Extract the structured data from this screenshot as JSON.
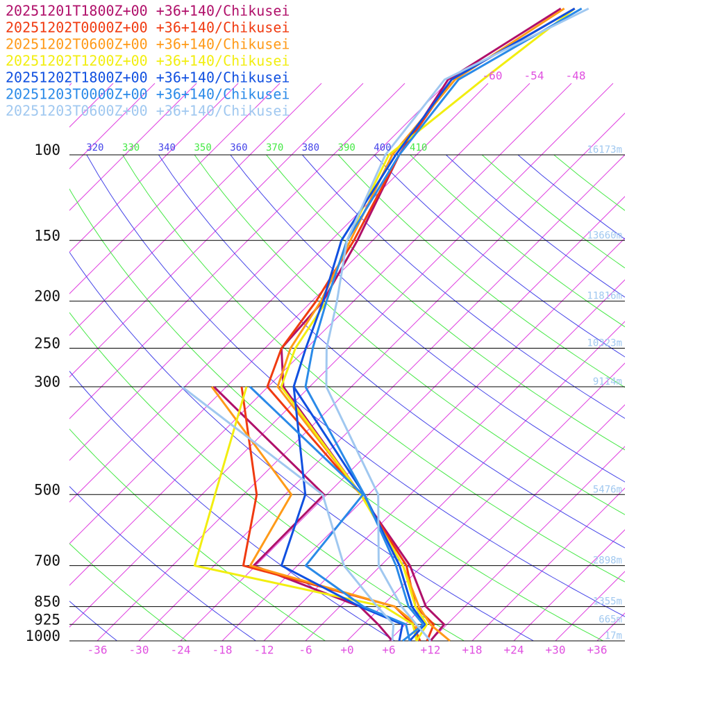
{
  "chart_data": {
    "type": "skewt",
    "log_y": true,
    "ylim": [
      1000,
      100
    ],
    "xlim": [
      -40,
      40
    ],
    "yticks": [
      100,
      150,
      200,
      250,
      300,
      500,
      700,
      850,
      925,
      1000
    ],
    "height_labels": [
      "16173m",
      "13660m",
      "11816m",
      "10323m",
      "9114m",
      "5476m",
      "2898m",
      "1355m",
      "665m",
      "17m"
    ],
    "xticks": [
      -36,
      -30,
      -24,
      -18,
      -12,
      -6,
      {
        "value": 0,
        "label": "+0"
      },
      {
        "value": 6,
        "label": "+6"
      },
      {
        "value": 12,
        "label": "+12"
      },
      {
        "value": 18,
        "label": "+18"
      },
      {
        "value": 24,
        "label": "+24"
      },
      {
        "value": 30,
        "label": "+30"
      },
      {
        "value": 36,
        "label": "+36"
      }
    ],
    "isotherm_labels": [
      -60,
      -54,
      -48
    ],
    "isotherm_color": "#e040e0",
    "adiabat_labels": [
      320,
      330,
      340,
      350,
      360,
      370,
      380,
      390,
      400,
      410
    ],
    "adiabat_colors": [
      "#4444e8",
      "#44e844"
    ],
    "pressure_levels": [
      1000,
      925,
      850,
      700,
      500,
      300,
      250,
      200,
      150,
      100,
      70,
      50
    ],
    "dewpoint_levels": [
      1000,
      925,
      850,
      700,
      500,
      300
    ],
    "series": [
      {
        "name": "20251201T1800Z+00 +36+140/Chikusei",
        "color": "#b0106a",
        "temperature": [
          12,
          11.6,
          6.4,
          -1.8,
          -19.1,
          -45.8,
          -51.6,
          -52.4,
          -56.2,
          -62.5,
          -66.3,
          -60.3
        ],
        "dewpoint": [
          6.5,
          2.1,
          -3.1,
          -24.3,
          -24.4,
          -55.8
        ]
      },
      {
        "name": "20251202T0000Z+00 +36+140/Chikusei",
        "color": "#f03a10",
        "temperature": [
          11.5,
          10.1,
          4.9,
          -2.3,
          -19.1,
          -48.1,
          -51.6,
          -53.4,
          -56.7,
          -62.5,
          -65.8,
          -58.3
        ],
        "dewpoint": [
          10.5,
          7.1,
          1.9,
          -25.8,
          -34.1,
          -51.8
        ]
      },
      {
        "name": "20251202T0600Z+00 +36+140/Chikusei",
        "color": "#ff9a18",
        "temperature": [
          14.8,
          9.6,
          5.4,
          -2.8,
          -19.1,
          -46.6,
          -50.3,
          -52.7,
          -57.2,
          -63.5,
          -65.3,
          -59.8
        ],
        "dewpoint": [
          10,
          7.6,
          1.9,
          -24.8,
          -29.1,
          -56.1
        ]
      },
      {
        "name": "20251202T1200Z+00 +36+140/Chikusei",
        "color": "#f2ee10",
        "temperature": [
          10,
          9.1,
          4.9,
          -2.8,
          -19.1,
          -46.1,
          -49.6,
          -51.9,
          -57.7,
          -64,
          -61.3,
          -58.3
        ],
        "dewpoint": [
          10,
          7.1,
          0.4,
          -32.8,
          -40.1,
          -51.1
        ]
      },
      {
        "name": "20251202T1800Z+00 +36+140/Chikusei",
        "color": "#1050e0",
        "temperature": [
          9,
          8.8,
          4.4,
          -3.3,
          -18.6,
          -44.3,
          -48.1,
          -52.4,
          -58.5,
          -63,
          -65.8,
          -58.3
        ],
        "dewpoint": [
          7.5,
          5.6,
          -3.1,
          -20.3,
          -27.1,
          -44.3
        ]
      },
      {
        "name": "20251203T0000Z+00 +36+140/Chikusei",
        "color": "#2a8ae8",
        "temperature": [
          8,
          8.6,
          3.9,
          -3.8,
          -18.6,
          -42.6,
          -47.1,
          -51.9,
          -57.7,
          -62.5,
          -64.8,
          -57.3
        ],
        "dewpoint": [
          9,
          6.1,
          -2.6,
          -16.8,
          -18.8,
          -50.6
        ]
      },
      {
        "name": "20251203T0600Z+00 +36+140/Chikusei",
        "color": "#a0c8f0",
        "temperature": [
          12,
          7.6,
          2.9,
          -6.3,
          -16.6,
          -39.6,
          -45.1,
          -50.4,
          -57.7,
          -64.5,
          -66.8,
          -56.3
        ],
        "dewpoint": [
          6.5,
          4.3,
          -0.6,
          -11.3,
          -24.6,
          -60.4
        ]
      }
    ]
  }
}
